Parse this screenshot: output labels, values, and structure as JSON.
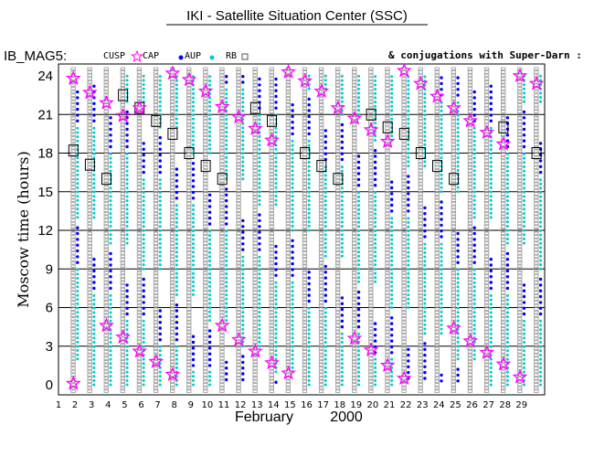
{
  "chart_data": {
    "type": "scatter",
    "title": "IKI - Satellite Situation Center (SSC)",
    "dataset_label": "IB_MAG5:",
    "legend": [
      {
        "label": "CUSP",
        "symbol": "star",
        "color": "#ff00ff"
      },
      {
        "label": "CAP",
        "symbol": "dot",
        "color": "#0000ff"
      },
      {
        "label": "AUP",
        "symbol": "dot",
        "color": "#00cccc"
      },
      {
        "label": "RB",
        "symbol": "square",
        "color": "#555555"
      }
    ],
    "annotation": "& conjugations with Super-Darn :",
    "xlabel": "February",
    "xlabel_year": "2000",
    "ylabel": "Moscow time (hours)",
    "xlim": [
      1,
      30
    ],
    "ylim": [
      0,
      24
    ],
    "x_ticks": [
      1,
      2,
      3,
      4,
      5,
      6,
      7,
      8,
      9,
      10,
      11,
      12,
      13,
      14,
      15,
      16,
      17,
      18,
      19,
      20,
      21,
      22,
      23,
      24,
      25,
      26,
      27,
      28,
      29
    ],
    "y_ticks": [
      0,
      3,
      6,
      9,
      12,
      15,
      18,
      21,
      24
    ],
    "grid_y": true,
    "orbit_days": [
      1.9,
      2.9,
      3.9,
      4.9,
      5.9,
      6.9,
      7.9,
      8.9,
      9.9,
      10.9,
      11.9,
      12.9,
      13.9,
      14.9,
      15.9,
      16.9,
      17.9,
      18.9,
      19.9,
      20.9,
      21.9,
      22.9,
      23.9,
      24.9,
      25.9,
      26.9,
      27.9,
      28.9,
      29.9
    ],
    "cusp_events": [
      {
        "day": 1.9,
        "hours": [
          0.1,
          23.8
        ]
      },
      {
        "day": 2.9,
        "hours": [
          22.7
        ]
      },
      {
        "day": 3.9,
        "hours": [
          4.6,
          21.9
        ]
      },
      {
        "day": 4.9,
        "hours": [
          3.7,
          20.9
        ]
      },
      {
        "day": 5.9,
        "hours": [
          2.6,
          21.5
        ]
      },
      {
        "day": 6.9,
        "hours": [
          1.8
        ]
      },
      {
        "day": 7.9,
        "hours": [
          0.8,
          24.2
        ]
      },
      {
        "day": 8.9,
        "hours": [
          23.7
        ]
      },
      {
        "day": 9.9,
        "hours": [
          22.8
        ]
      },
      {
        "day": 10.9,
        "hours": [
          4.6,
          21.6
        ]
      },
      {
        "day": 11.9,
        "hours": [
          3.5,
          20.8
        ]
      },
      {
        "day": 12.9,
        "hours": [
          2.6,
          19.9
        ]
      },
      {
        "day": 13.9,
        "hours": [
          1.7,
          19.0
        ]
      },
      {
        "day": 14.9,
        "hours": [
          0.9,
          24.3
        ]
      },
      {
        "day": 15.9,
        "hours": [
          23.6
        ]
      },
      {
        "day": 16.9,
        "hours": [
          22.8
        ]
      },
      {
        "day": 17.9,
        "hours": [
          21.5
        ]
      },
      {
        "day": 18.9,
        "hours": [
          3.6,
          20.7
        ]
      },
      {
        "day": 19.9,
        "hours": [
          2.7,
          19.8
        ]
      },
      {
        "day": 20.9,
        "hours": [
          1.5,
          18.9
        ]
      },
      {
        "day": 21.9,
        "hours": [
          0.5,
          24.4
        ]
      },
      {
        "day": 22.9,
        "hours": [
          23.4
        ]
      },
      {
        "day": 23.9,
        "hours": [
          22.4
        ]
      },
      {
        "day": 24.9,
        "hours": [
          4.4,
          21.5
        ]
      },
      {
        "day": 25.9,
        "hours": [
          3.4,
          20.5
        ]
      },
      {
        "day": 26.9,
        "hours": [
          2.5,
          19.6
        ]
      },
      {
        "day": 27.9,
        "hours": [
          1.6,
          18.7
        ]
      },
      {
        "day": 28.9,
        "hours": [
          0.6,
          24.0
        ]
      },
      {
        "day": 29.9,
        "hours": [
          23.4
        ]
      }
    ],
    "superdarn_boxes": [
      {
        "day": 1.9,
        "hour": 18.2
      },
      {
        "day": 2.9,
        "hour": 17.1
      },
      {
        "day": 3.9,
        "hour": 16.0
      },
      {
        "day": 4.9,
        "hour": 22.5
      },
      {
        "day": 5.9,
        "hour": 21.5
      },
      {
        "day": 6.9,
        "hour": 20.5
      },
      {
        "day": 7.9,
        "hour": 19.5
      },
      {
        "day": 8.9,
        "hour": 18.0
      },
      {
        "day": 9.9,
        "hour": 17.0
      },
      {
        "day": 10.9,
        "hour": 16.0
      },
      {
        "day": 12.9,
        "hour": 21.5
      },
      {
        "day": 13.9,
        "hour": 20.5
      },
      {
        "day": 15.9,
        "hour": 18.0
      },
      {
        "day": 16.9,
        "hour": 17.0
      },
      {
        "day": 17.9,
        "hour": 16.0
      },
      {
        "day": 19.9,
        "hour": 21.0
      },
      {
        "day": 20.9,
        "hour": 20.0
      },
      {
        "day": 21.9,
        "hour": 19.5
      },
      {
        "day": 22.9,
        "hour": 18.0
      },
      {
        "day": 23.9,
        "hour": 17.0
      },
      {
        "day": 24.9,
        "hour": 16.0
      },
      {
        "day": 27.9,
        "hour": 20.0
      },
      {
        "day": 29.9,
        "hour": 18.0
      }
    ]
  }
}
